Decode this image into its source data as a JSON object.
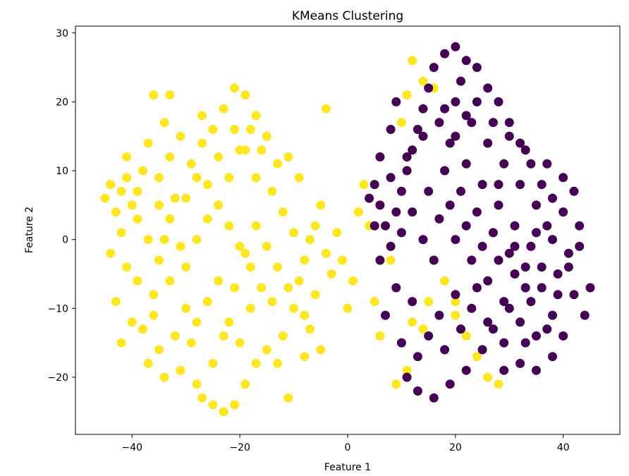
{
  "chart_data": {
    "type": "scatter",
    "title": "KMeans Clustering",
    "xlabel": "Feature 1",
    "ylabel": "Feature 2",
    "xlim": [
      -50.5,
      50.5
    ],
    "ylim": [
      -28.3,
      31.0
    ],
    "xticks": [
      -40,
      -20,
      0,
      20,
      40
    ],
    "xtick_labels": [
      "−40",
      "−20",
      "0",
      "20",
      "40"
    ],
    "yticks": [
      -20,
      -10,
      0,
      10,
      20,
      30
    ],
    "ytick_labels": [
      "−20",
      "−10",
      "0",
      "10",
      "20",
      "30"
    ],
    "grid": false,
    "legend": "none",
    "colors": {
      "cluster_0": "#440154",
      "cluster_1": "#fde725"
    },
    "series": [
      {
        "color": "#fde725",
        "points": [
          [
            -45,
            6
          ],
          [
            -44,
            8
          ],
          [
            -43,
            4
          ],
          [
            -42,
            7
          ],
          [
            -41,
            9
          ],
          [
            -40,
            5
          ],
          [
            -39,
            7
          ],
          [
            -38,
            10
          ],
          [
            -42,
            1
          ],
          [
            -44,
            -2
          ],
          [
            -41,
            -4
          ],
          [
            -39,
            -6
          ],
          [
            -43,
            -9
          ],
          [
            -40,
            -12
          ],
          [
            -42,
            -15
          ],
          [
            -38,
            -13
          ],
          [
            -36,
            -8
          ],
          [
            -35,
            -3
          ],
          [
            -34,
            0
          ],
          [
            -33,
            3
          ],
          [
            -32,
            6
          ],
          [
            -35,
            9
          ],
          [
            -33,
            12
          ],
          [
            -31,
            15
          ],
          [
            -34,
            17
          ],
          [
            -36,
            21
          ],
          [
            -33,
            21
          ],
          [
            -30,
            -10
          ],
          [
            -32,
            -14
          ],
          [
            -35,
            -16
          ],
          [
            -37,
            -18
          ],
          [
            -34,
            -20
          ],
          [
            -31,
            -19
          ],
          [
            -28,
            -21
          ],
          [
            -27,
            -23
          ],
          [
            -25,
            -24
          ],
          [
            -23,
            -25
          ],
          [
            -21,
            -24
          ],
          [
            -19,
            -21
          ],
          [
            -17,
            -18
          ],
          [
            -15,
            -16
          ],
          [
            -13,
            -18
          ],
          [
            -11,
            -23
          ],
          [
            -12,
            -14
          ],
          [
            -10,
            -10
          ],
          [
            -9,
            -6
          ],
          [
            -8,
            -3
          ],
          [
            -7,
            0
          ],
          [
            -6,
            2
          ],
          [
            -5,
            5
          ],
          [
            -4,
            -2
          ],
          [
            -3,
            -5
          ],
          [
            -6,
            -8
          ],
          [
            -8,
            -11
          ],
          [
            -9,
            9
          ],
          [
            -11,
            12
          ],
          [
            -13,
            11
          ],
          [
            -15,
            15
          ],
          [
            -17,
            18
          ],
          [
            -19,
            21
          ],
          [
            -21,
            22
          ],
          [
            -23,
            19
          ],
          [
            -25,
            16
          ],
          [
            -27,
            14
          ],
          [
            -29,
            11
          ],
          [
            -26,
            8
          ],
          [
            -24,
            5
          ],
          [
            -22,
            2
          ],
          [
            -20,
            -1
          ],
          [
            -18,
            -4
          ],
          [
            -16,
            -7
          ],
          [
            -14,
            -9
          ],
          [
            -24,
            -6
          ],
          [
            -26,
            -9
          ],
          [
            -28,
            -12
          ],
          [
            -22,
            -12
          ],
          [
            -20,
            -15
          ],
          [
            -18,
            -10
          ],
          [
            -30,
            -4
          ],
          [
            -28,
            0
          ],
          [
            -26,
            3
          ],
          [
            -30,
            6
          ],
          [
            -28,
            9
          ],
          [
            -22,
            9
          ],
          [
            -20,
            13
          ],
          [
            -18,
            16
          ],
          [
            -16,
            13
          ],
          [
            -14,
            7
          ],
          [
            -12,
            4
          ],
          [
            -10,
            1
          ],
          [
            -2,
            1
          ],
          [
            -1,
            -3
          ],
          [
            0,
            -10
          ],
          [
            1,
            -6
          ],
          [
            2,
            4
          ],
          [
            3,
            8
          ],
          [
            4,
            2
          ],
          [
            -5,
            -16
          ],
          [
            -8,
            -17
          ],
          [
            -7,
            -13
          ],
          [
            -4,
            19
          ],
          [
            -37,
            0
          ],
          [
            -39,
            3
          ],
          [
            -36,
            -11
          ],
          [
            -33,
            -6
          ],
          [
            -31,
            -1
          ],
          [
            -29,
            -15
          ],
          [
            -25,
            -18
          ],
          [
            -23,
            -14
          ],
          [
            -21,
            -7
          ],
          [
            -19,
            -2
          ],
          [
            -17,
            2
          ],
          [
            -15,
            -1
          ],
          [
            -13,
            -4
          ],
          [
            -11,
            -7
          ],
          [
            -24,
            12
          ],
          [
            -27,
            18
          ],
          [
            -21,
            16
          ],
          [
            -19,
            13
          ],
          [
            -17,
            9
          ],
          [
            -35,
            5
          ],
          [
            -37,
            14
          ],
          [
            -41,
            12
          ],
          [
            12,
            26
          ],
          [
            14,
            23
          ],
          [
            11,
            21
          ],
          [
            10,
            17
          ],
          [
            16,
            22
          ],
          [
            9,
            -21
          ],
          [
            11,
            -19
          ],
          [
            13,
            -17
          ],
          [
            12,
            -12
          ],
          [
            15,
            -9
          ],
          [
            18,
            -6
          ],
          [
            20,
            -11
          ],
          [
            22,
            -14
          ],
          [
            24,
            -17
          ],
          [
            26,
            -20
          ],
          [
            28,
            -21
          ],
          [
            20,
            -9
          ],
          [
            6,
            -14
          ],
          [
            8,
            -3
          ],
          [
            5,
            -9
          ],
          [
            14,
            -13
          ]
        ]
      },
      {
        "color": "#440154",
        "points": [
          [
            5,
            8
          ],
          [
            6,
            5
          ],
          [
            7,
            2
          ],
          [
            8,
            -1
          ],
          [
            9,
            4
          ],
          [
            10,
            7
          ],
          [
            11,
            10
          ],
          [
            12,
            13
          ],
          [
            13,
            16
          ],
          [
            14,
            19
          ],
          [
            15,
            22
          ],
          [
            16,
            25
          ],
          [
            18,
            27
          ],
          [
            20,
            28
          ],
          [
            22,
            26
          ],
          [
            24,
            25
          ],
          [
            26,
            22
          ],
          [
            28,
            20
          ],
          [
            30,
            17
          ],
          [
            32,
            14
          ],
          [
            34,
            11
          ],
          [
            36,
            8
          ],
          [
            38,
            6
          ],
          [
            40,
            4
          ],
          [
            42,
            7
          ],
          [
            43,
            2
          ],
          [
            41,
            -2
          ],
          [
            39,
            -5
          ],
          [
            42,
            -8
          ],
          [
            44,
            -11
          ],
          [
            45,
            -7
          ],
          [
            40,
            -14
          ],
          [
            38,
            -17
          ],
          [
            35,
            -19
          ],
          [
            32,
            -18
          ],
          [
            29,
            -15
          ],
          [
            26,
            -12
          ],
          [
            23,
            -10
          ],
          [
            20,
            -8
          ],
          [
            17,
            -11
          ],
          [
            15,
            -14
          ],
          [
            13,
            -17
          ],
          [
            11,
            -20
          ],
          [
            13,
            -22
          ],
          [
            16,
            -23
          ],
          [
            19,
            -21
          ],
          [
            22,
            -19
          ],
          [
            25,
            -16
          ],
          [
            27,
            -13
          ],
          [
            30,
            -10
          ],
          [
            33,
            -7
          ],
          [
            36,
            -4
          ],
          [
            34,
            -1
          ],
          [
            31,
            2
          ],
          [
            28,
            5
          ],
          [
            25,
            8
          ],
          [
            22,
            11
          ],
          [
            19,
            14
          ],
          [
            17,
            17
          ],
          [
            20,
            20
          ],
          [
            23,
            17
          ],
          [
            26,
            14
          ],
          [
            29,
            11
          ],
          [
            32,
            8
          ],
          [
            35,
            5
          ],
          [
            37,
            2
          ],
          [
            33,
            -4
          ],
          [
            30,
            -2
          ],
          [
            27,
            1
          ],
          [
            24,
            4
          ],
          [
            21,
            7
          ],
          [
            18,
            10
          ],
          [
            15,
            7
          ],
          [
            12,
            4
          ],
          [
            10,
            1
          ],
          [
            14,
            0
          ],
          [
            17,
            3
          ],
          [
            20,
            0
          ],
          [
            23,
            -3
          ],
          [
            26,
            -6
          ],
          [
            29,
            -9
          ],
          [
            32,
            -12
          ],
          [
            35,
            -14
          ],
          [
            38,
            -11
          ],
          [
            36,
            -7
          ],
          [
            31,
            -5
          ],
          [
            28,
            -3
          ],
          [
            25,
            -1
          ],
          [
            22,
            2
          ],
          [
            19,
            5
          ],
          [
            16,
            -3
          ],
          [
            18,
            -16
          ],
          [
            21,
            -13
          ],
          [
            24,
            -7
          ],
          [
            34,
            -9
          ],
          [
            37,
            -13
          ],
          [
            39,
            -8
          ],
          [
            41,
            -4
          ],
          [
            43,
            -1
          ],
          [
            40,
            9
          ],
          [
            37,
            11
          ],
          [
            33,
            13
          ],
          [
            30,
            15
          ],
          [
            27,
            17
          ],
          [
            24,
            20
          ],
          [
            21,
            23
          ],
          [
            18,
            19
          ],
          [
            14,
            15
          ],
          [
            11,
            12
          ],
          [
            8,
            9
          ],
          [
            4,
            6
          ],
          [
            5,
            2
          ],
          [
            6,
            -3
          ],
          [
            9,
            -7
          ],
          [
            7,
            -11
          ],
          [
            10,
            -15
          ],
          [
            12,
            -9
          ],
          [
            8,
            16
          ],
          [
            9,
            20
          ],
          [
            6,
            12
          ],
          [
            20,
            15
          ],
          [
            22,
            18
          ],
          [
            28,
            8
          ],
          [
            31,
            -1
          ],
          [
            35,
            1
          ],
          [
            38,
            0
          ],
          [
            33,
            -15
          ],
          [
            29,
            -19
          ]
        ]
      }
    ]
  }
}
